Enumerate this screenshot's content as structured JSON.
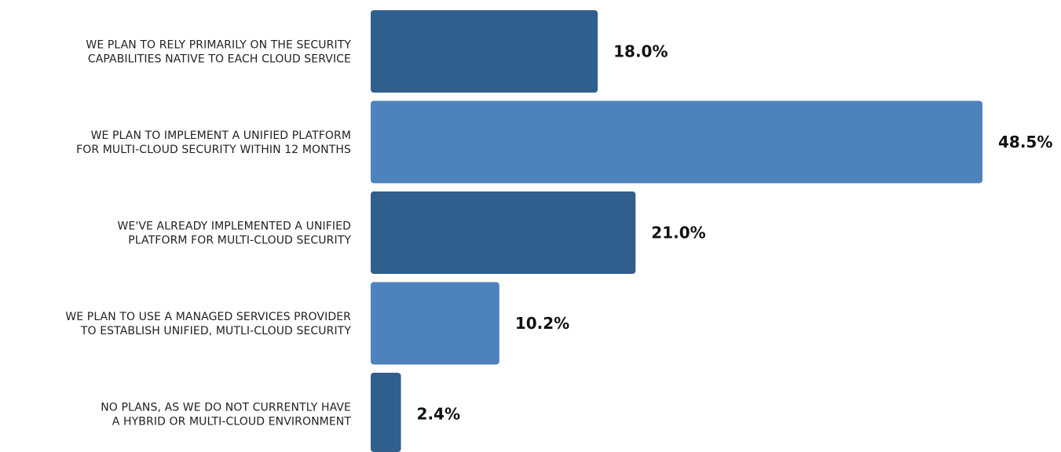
{
  "chart_data": {
    "type": "bar",
    "orientation": "horizontal",
    "categories": [
      [
        "WE PLAN TO RELY PRIMARILY ON THE SECURITY",
        "CAPABILITIES NATIVE TO EACH CLOUD SERVICE"
      ],
      [
        "WE PLAN TO IMPLEMENT A UNIFIED PLATFORM",
        "FOR MULTI-CLOUD SECURITY WITHIN 12 MONTHS"
      ],
      [
        "WE'VE ALREADY IMPLEMENTED A UNIFIED",
        "PLATFORM FOR MULTI-CLOUD SECURITY"
      ],
      [
        "WE PLAN TO USE A MANAGED SERVICES PROVIDER",
        "TO ESTABLISH UNIFIED, MUTLI-CLOUD SECURITY"
      ],
      [
        "NO PLANS, AS WE DO NOT CURRENTLY HAVE",
        "A HYBRID OR MULTI-CLOUD ENVIRONMENT"
      ]
    ],
    "values": [
      18.0,
      48.5,
      21.0,
      10.2,
      2.4
    ],
    "value_labels": [
      "18.0%",
      "48.5%",
      "21.0%",
      "10.2%",
      "2.4%"
    ],
    "bar_colors": [
      "#305f8e",
      "#4e82bc",
      "#305f8e",
      "#4e82bc",
      "#305f8e"
    ],
    "xlim": [
      0,
      48.5
    ],
    "title": "",
    "xlabel": "",
    "ylabel": "",
    "grid": false,
    "legend": "none"
  }
}
